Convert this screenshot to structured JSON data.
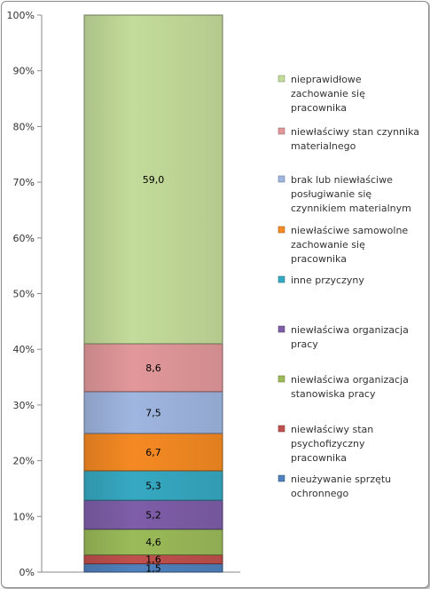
{
  "chart_data": {
    "type": "bar",
    "subtype": "stacked-percent",
    "categories": [
      ""
    ],
    "y_ticks": [
      "0%",
      "10%",
      "20%",
      "30%",
      "40%",
      "50%",
      "60%",
      "70%",
      "80%",
      "90%",
      "100%"
    ],
    "ylim": [
      0,
      100
    ],
    "grid": false,
    "legend_position": "right",
    "series": [
      {
        "name": "nieużywanie sprzętu ochronnego",
        "value": 1.5,
        "label": "1,5",
        "color": "#4f81bd"
      },
      {
        "name": "niewłaściwy stan psychofizyczny pracownika",
        "value": 1.6,
        "label": "1,6",
        "color": "#c0504d"
      },
      {
        "name": "niewłaściwa organizacja stanowiska pracy",
        "value": 4.6,
        "label": "4,6",
        "color": "#9bbb59"
      },
      {
        "name": "niewłaściwa organizacja pracy",
        "value": 5.2,
        "label": "5,2",
        "color": "#7e5ea8"
      },
      {
        "name": "inne przyczyny",
        "value": 5.3,
        "label": "5,3",
        "color": "#36a9c2"
      },
      {
        "name": "niewłaściwe samowolne zachowanie się pracownika",
        "value": 6.7,
        "label": "6,7",
        "color": "#f58a23"
      },
      {
        "name": "brak lub niewłaściwe posługiwanie się czynnikiem materialnym",
        "value": 7.5,
        "label": "7,5",
        "color": "#9fb6e0"
      },
      {
        "name": "niewłaściwy stan czynnika materialnego",
        "value": 8.6,
        "label": "8,6",
        "color": "#e2989a"
      },
      {
        "name": "nieprawidłowe zachowanie się pracownika",
        "value": 59.0,
        "label": "59,0",
        "color": "#c4dc9a"
      }
    ],
    "legend_lines": [
      [
        "nieprawidłowe",
        "zachowanie się",
        "pracownika"
      ],
      [
        "niewłaściwy stan czynnika",
        "materialnego"
      ],
      [
        "brak lub niewłaściwe",
        "posługiwanie się",
        "czynnikiem materialnym"
      ],
      [
        "niewłaściwe samowolne",
        "zachowanie się",
        "pracownika"
      ],
      [
        "inne przyczyny"
      ],
      [
        "niewłaściwa organizacja",
        "pracy"
      ],
      [
        "niewłaściwa organizacja",
        "stanowiska pracy"
      ],
      [
        "niewłaściwy stan",
        "psychofizyczny",
        "pracownika"
      ],
      [
        "nieużywanie sprzętu",
        "ochronnego"
      ]
    ],
    "legend_order": [
      8,
      7,
      6,
      5,
      4,
      3,
      2,
      1,
      0
    ]
  }
}
